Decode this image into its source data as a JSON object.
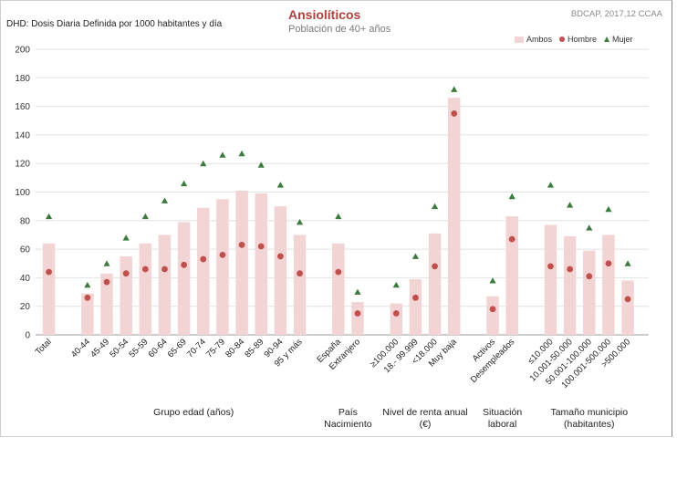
{
  "chart_data": {
    "type": "bar",
    "title": "Ansiolíticos",
    "subtitle": "Población de 40+ años",
    "ylabel": "DHD: Dosis Diaria Definida por 1000 habitantes  y día",
    "source": "BDCAP, 2017,12 CCAA",
    "ylim": [
      0,
      200
    ],
    "yticks": [
      0,
      20,
      40,
      60,
      80,
      100,
      120,
      140,
      160,
      180,
      200
    ],
    "legend": [
      "Ambos",
      "Hombre",
      "Mujer"
    ],
    "categories": [
      "Total",
      "40-44",
      "45-49",
      "50-54",
      "55-59",
      "60-64",
      "65-69",
      "70-74",
      "75-79",
      "80-84",
      "85-89",
      "90-94",
      "95 y más",
      "España",
      "Extranjero",
      "≥100.000",
      "18.- 99.999",
      "<18.000",
      "Muy baja",
      "Activos",
      "Desempleados",
      "≤10.000",
      "10.001-50.000",
      "50.001-100.000",
      "100.001-500.000",
      ">500.000"
    ],
    "series": [
      {
        "name": "Ambos",
        "values": [
          64,
          29,
          43,
          55,
          64,
          70,
          79,
          89,
          95,
          101,
          99,
          90,
          70,
          64,
          23,
          22,
          39,
          71,
          166,
          27,
          83,
          77,
          69,
          59,
          70,
          38
        ]
      },
      {
        "name": "Hombre",
        "values": [
          44,
          26,
          37,
          43,
          46,
          46,
          49,
          53,
          56,
          63,
          62,
          55,
          43,
          44,
          15,
          15,
          26,
          48,
          155,
          18,
          67,
          48,
          46,
          41,
          50,
          25
        ]
      },
      {
        "name": "Mujer",
        "values": [
          83,
          35,
          50,
          68,
          83,
          94,
          106,
          120,
          126,
          127,
          119,
          105,
          79,
          83,
          30,
          35,
          55,
          90,
          172,
          38,
          97,
          105,
          91,
          75,
          88,
          50
        ]
      }
    ],
    "groups": [
      {
        "label": "Grupo edad (años)",
        "start": 1,
        "end": 12
      },
      {
        "label": "País Nacimiento",
        "start": 13,
        "end": 14
      },
      {
        "label": "Nivel de renta anual (€)",
        "start": 15,
        "end": 18
      },
      {
        "label": "Situación laboral",
        "start": 19,
        "end": 20
      },
      {
        "label": "Tamaño municipio (habitantes)",
        "start": 21,
        "end": 25
      }
    ],
    "colors": {
      "Ambos": "#f2d4d4",
      "Hombre": "#c0504d",
      "Mujer": "#3d7a3d"
    }
  }
}
